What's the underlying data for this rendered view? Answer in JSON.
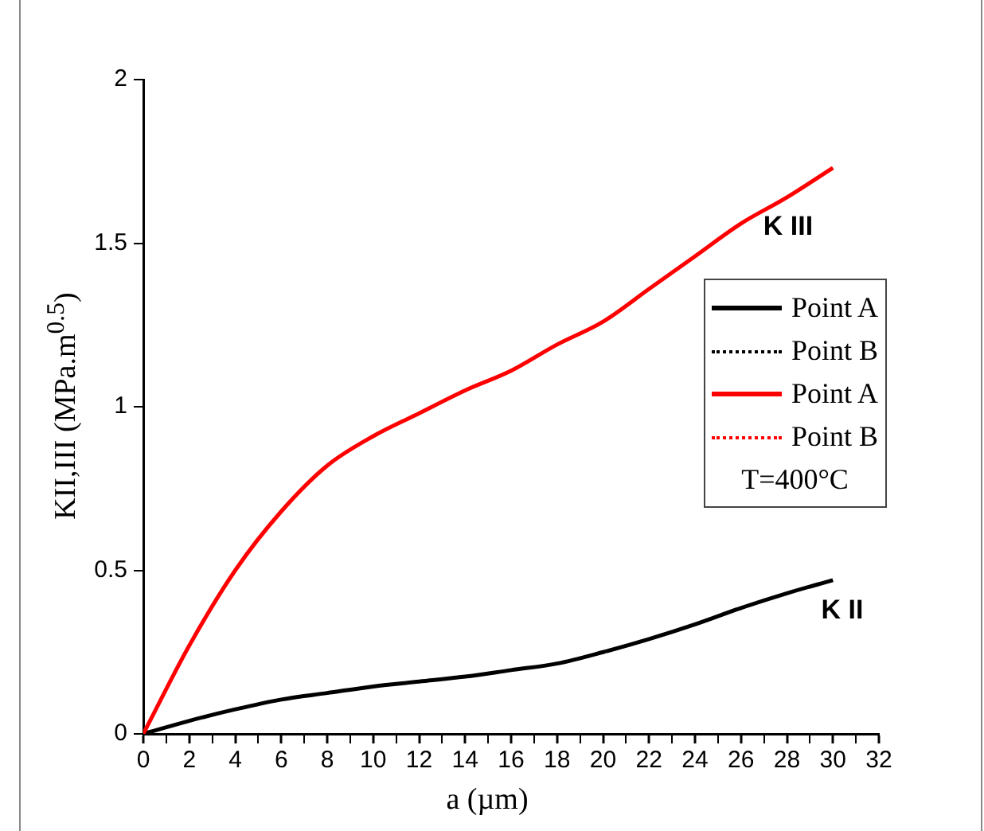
{
  "chart_data": {
    "type": "line",
    "xlabel": "a (µm)",
    "ylabel": "KII,III (MPa.m$^{0.5}$)",
    "legend": "right",
    "legend_title": "T=400°C",
    "grid": false,
    "marker": "none",
    "x": [
      0,
      2,
      4,
      6,
      8,
      10,
      12,
      14,
      16,
      18,
      20,
      22,
      24,
      26,
      28,
      30
    ],
    "xlim": [
      0,
      32
    ],
    "xticks": [
      0,
      {
        "value": 1,
        "label": null
      },
      2,
      {
        "value": 3,
        "label": null
      },
      4,
      {
        "value": 5,
        "label": null
      },
      6,
      {
        "value": 7,
        "label": null
      },
      8,
      {
        "value": 9,
        "label": null
      },
      10,
      {
        "value": 11,
        "label": null
      },
      12,
      {
        "value": 13,
        "label": null
      },
      14,
      {
        "value": 15,
        "label": null
      },
      16,
      {
        "value": 17,
        "label": null
      },
      18,
      {
        "value": 19,
        "label": null
      },
      20,
      {
        "value": 21,
        "label": null
      },
      22,
      {
        "value": 23,
        "label": null
      },
      24,
      {
        "value": 25,
        "label": null
      },
      26,
      {
        "value": 27,
        "label": null
      },
      28,
      {
        "value": 29,
        "label": null
      },
      30,
      {
        "value": 31,
        "label": null
      },
      32
    ],
    "ylim": [
      0,
      2
    ],
    "yticks": [
      0,
      0.5,
      1,
      1.5,
      2
    ],
    "series": [
      {
        "name": "Point A",
        "color": "#000000",
        "line_style": "solid",
        "values": [
          0,
          0.04,
          0.075,
          0.105,
          0.125,
          0.145,
          0.16,
          0.175,
          0.195,
          0.215,
          0.25,
          0.29,
          0.335,
          0.385,
          0.43,
          0.47
        ]
      },
      {
        "name": "Point B",
        "color": "#000000",
        "line_style": "dotted",
        "values": [
          null,
          null,
          null,
          null,
          null,
          null,
          null,
          null,
          null,
          null,
          null,
          null,
          null,
          null,
          null,
          null
        ]
      },
      {
        "name": "Point A",
        "color": "#ff0000",
        "line_style": "solid",
        "values": [
          0,
          0.27,
          0.5,
          0.68,
          0.82,
          0.91,
          0.98,
          1.05,
          1.11,
          1.19,
          1.26,
          1.36,
          1.46,
          1.56,
          1.64,
          1.73
        ]
      },
      {
        "name": "Point B",
        "color": "#ff0000",
        "line_style": "dotted",
        "values": [
          null,
          null,
          null,
          null,
          null,
          null,
          null,
          null,
          null,
          null,
          null,
          null,
          null,
          null,
          null,
          null
        ]
      }
    ],
    "annotations": [
      "K III",
      "K II"
    ]
  }
}
